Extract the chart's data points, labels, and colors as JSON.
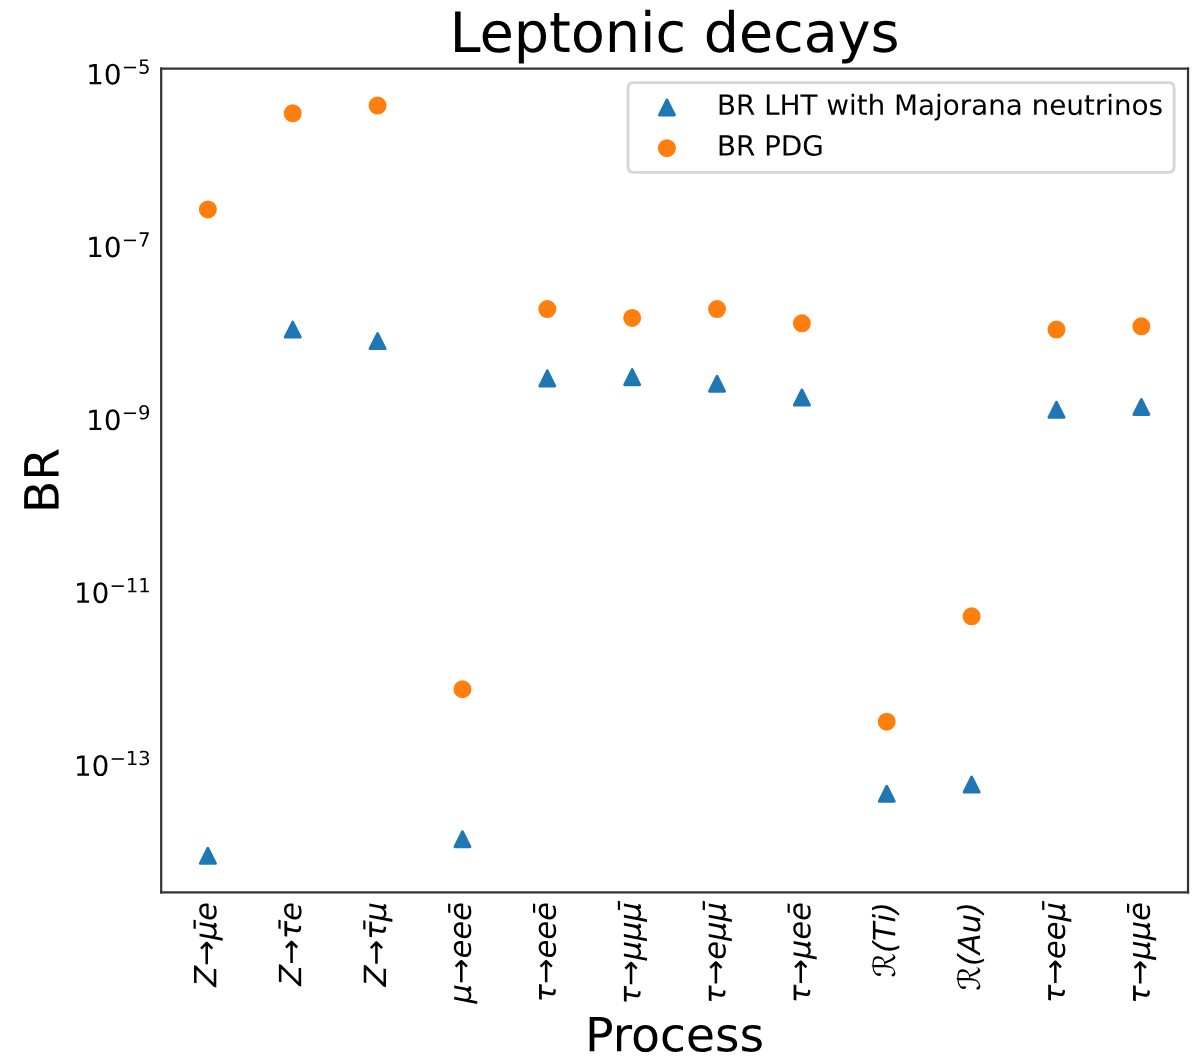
{
  "chart_data": {
    "type": "scatter",
    "title": "Leptonic decays",
    "xlabel": "Process",
    "ylabel": "BR",
    "categories": [
      "Z→μ̄e",
      "Z→τ̄e",
      "Z→τ̄μ",
      "μ→eeē",
      "τ→eeē",
      "τ→μμμ̄",
      "τ→eμμ̄",
      "τ→μeē",
      "ℛ(Ti)",
      "ℛ(Au)",
      "τ→eeμ̄",
      "τ→μμē"
    ],
    "series": [
      {
        "name": "BR LHT with Majorana neutrinos",
        "color": "#1f77b4",
        "marker": "triangle",
        "values": [
          9e-15,
          1.1e-08,
          8.1e-09,
          1.4e-14,
          3e-09,
          3.1e-09,
          2.6e-09,
          1.8e-09,
          4.7e-14,
          6e-14,
          1.3e-09,
          1.4e-09
        ]
      },
      {
        "name": "BR PDG",
        "color": "#ff7f0e",
        "marker": "circle",
        "values": [
          2.7e-07,
          3.5e-06,
          4.3e-06,
          7.6e-13,
          1.9e-08,
          1.5e-08,
          1.9e-08,
          1.3e-08,
          3.2e-13,
          5.3e-12,
          1.1e-08,
          1.2e-08
        ]
      }
    ],
    "log": "y",
    "ylim": [
      3.4e-15,
      1.15e-05
    ],
    "yticks": [
      {
        "value": 1e-13,
        "label": "10$^{−13}$"
      },
      {
        "value": 1e-11,
        "label": "10$^{−11}$"
      },
      {
        "value": 1e-09,
        "label": "10$^{−9}$"
      },
      {
        "value": 1e-07,
        "label": "10$^{−7}$"
      },
      {
        "value": 1e-05,
        "label": "10$^{−5}$"
      }
    ],
    "grid": false,
    "legend": "top right"
  }
}
